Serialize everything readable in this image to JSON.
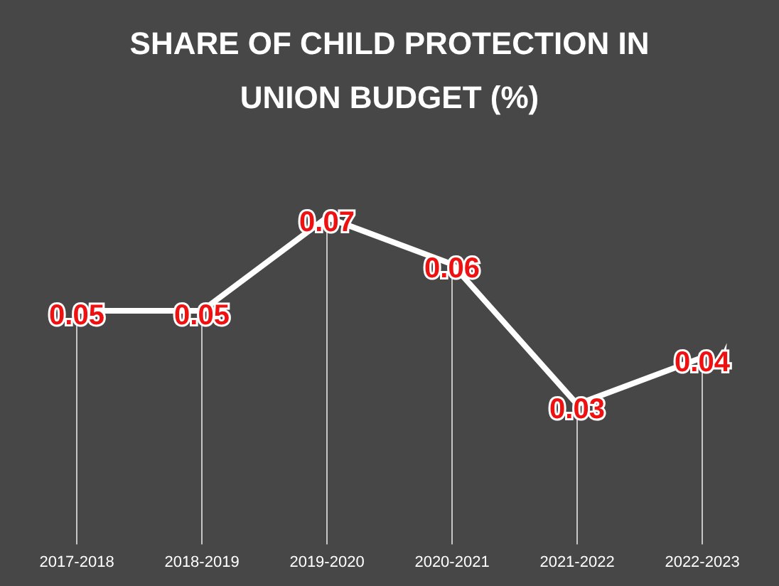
{
  "chart_data": {
    "type": "line",
    "title": "SHARE OF CHILD PROTECTION IN UNION BUDGET (%)",
    "categories": [
      "2017-2018",
      "2018-2019",
      "2019-2020",
      "2020-2021",
      "2021-2022",
      "2022-2023"
    ],
    "series": [
      {
        "color": "#ffffff",
        "values": [
          0.05,
          0.05,
          0.07,
          0.06,
          0.03,
          0.04
        ]
      }
    ],
    "data_labels": true,
    "legend": false,
    "grid": "x",
    "marker": "none",
    "tick_labels": "x"
  }
}
